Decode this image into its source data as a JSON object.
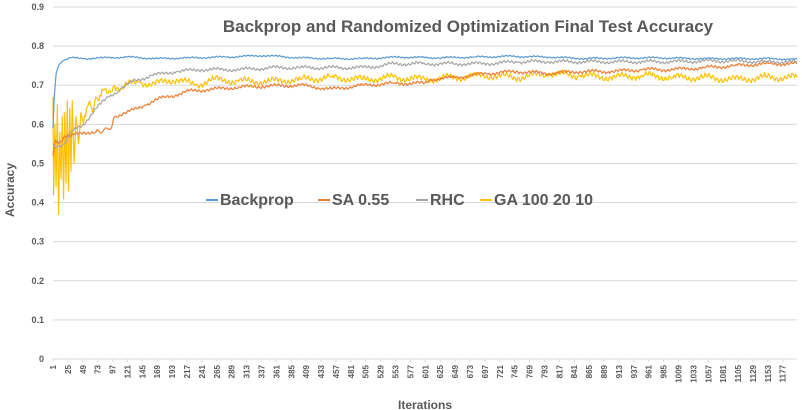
{
  "chart_data": {
    "type": "line",
    "title": "Backprop and Randomized Optimization Final Test Accuracy",
    "xlabel": "Iterations",
    "ylabel": "Accuracy",
    "ylim": [
      0,
      0.9
    ],
    "yticks": [
      "0",
      "0.1",
      "0.2",
      "0.3",
      "0.4",
      "0.5",
      "0.6",
      "0.7",
      "0.8",
      "0.9"
    ],
    "xlim": [
      1,
      1200
    ],
    "xticks": [
      1,
      25,
      49,
      73,
      97,
      121,
      145,
      169,
      193,
      217,
      241,
      265,
      289,
      313,
      337,
      361,
      385,
      409,
      433,
      457,
      481,
      505,
      529,
      553,
      577,
      601,
      625,
      649,
      673,
      697,
      721,
      745,
      769,
      793,
      817,
      841,
      865,
      889,
      913,
      937,
      961,
      985,
      1009,
      1033,
      1057,
      1081,
      1105,
      1129,
      1153,
      1177
    ],
    "grid": true,
    "legend_position": "center",
    "series": [
      {
        "name": "Backprop",
        "color": "#5b9bd5",
        "x": [
          1,
          3,
          6,
          10,
          15,
          20,
          30,
          50,
          80,
          120,
          170,
          220,
          280,
          340,
          400,
          450,
          500,
          560,
          620,
          680,
          740,
          800,
          860,
          920,
          980,
          1040,
          1100,
          1160,
          1200
        ],
        "y": [
          0.59,
          0.67,
          0.73,
          0.75,
          0.76,
          0.765,
          0.77,
          0.768,
          0.77,
          0.772,
          0.768,
          0.77,
          0.772,
          0.776,
          0.77,
          0.768,
          0.768,
          0.772,
          0.77,
          0.772,
          0.774,
          0.772,
          0.768,
          0.77,
          0.77,
          0.768,
          0.768,
          0.768,
          0.766
        ]
      },
      {
        "name": "SA 0.55",
        "color": "#ed7d31",
        "x": [
          1,
          5,
          10,
          20,
          30,
          50,
          70,
          95,
          100,
          120,
          150,
          180,
          200,
          220,
          260,
          300,
          350,
          400,
          450,
          500,
          550,
          600,
          610,
          650,
          700,
          750,
          800,
          850,
          900,
          950,
          1000,
          1050,
          1100,
          1150,
          1200
        ],
        "y": [
          0.52,
          0.56,
          0.55,
          0.57,
          0.57,
          0.58,
          0.58,
          0.59,
          0.62,
          0.63,
          0.65,
          0.67,
          0.675,
          0.685,
          0.69,
          0.695,
          0.698,
          0.7,
          0.69,
          0.7,
          0.705,
          0.705,
          0.715,
          0.72,
          0.73,
          0.735,
          0.73,
          0.735,
          0.735,
          0.74,
          0.74,
          0.745,
          0.75,
          0.755,
          0.755
        ]
      },
      {
        "name": "RHC",
        "color": "#a5a5a5",
        "x": [
          1,
          5,
          10,
          20,
          30,
          40,
          50,
          70,
          90,
          110,
          130,
          160,
          200,
          240,
          300,
          360,
          400,
          450,
          500,
          530,
          550,
          600,
          650,
          700,
          750,
          800,
          850,
          900,
          950,
          1000,
          1050,
          1100,
          1150,
          1200
        ],
        "y": [
          0.55,
          0.54,
          0.545,
          0.55,
          0.58,
          0.59,
          0.6,
          0.64,
          0.67,
          0.69,
          0.71,
          0.725,
          0.735,
          0.74,
          0.74,
          0.745,
          0.745,
          0.745,
          0.745,
          0.75,
          0.755,
          0.755,
          0.755,
          0.755,
          0.76,
          0.76,
          0.76,
          0.76,
          0.76,
          0.76,
          0.762,
          0.762,
          0.76,
          0.76
        ]
      },
      {
        "name": "GA 100 20 10",
        "color": "#ffc000",
        "x": [
          1,
          2,
          4,
          6,
          8,
          10,
          12,
          14,
          16,
          18,
          20,
          22,
          24,
          26,
          28,
          30,
          32,
          35,
          38,
          42,
          46,
          50,
          55,
          60,
          65,
          70,
          75,
          80,
          90,
          100,
          110,
          120,
          140,
          160,
          180,
          200,
          230,
          260,
          300,
          350,
          400,
          450,
          500,
          550,
          600,
          650,
          700,
          750,
          800,
          850,
          900,
          950,
          1000,
          1050,
          1100,
          1150,
          1200
        ],
        "y": [
          0.67,
          0.42,
          0.6,
          0.44,
          0.65,
          0.37,
          0.58,
          0.46,
          0.62,
          0.41,
          0.63,
          0.45,
          0.66,
          0.43,
          0.64,
          0.48,
          0.66,
          0.5,
          0.62,
          0.55,
          0.63,
          0.6,
          0.64,
          0.66,
          0.63,
          0.67,
          0.66,
          0.69,
          0.68,
          0.7,
          0.69,
          0.7,
          0.71,
          0.7,
          0.71,
          0.715,
          0.7,
          0.715,
          0.71,
          0.71,
          0.715,
          0.72,
          0.715,
          0.72,
          0.715,
          0.72,
          0.725,
          0.72,
          0.73,
          0.725,
          0.72,
          0.725,
          0.72,
          0.72,
          0.715,
          0.72,
          0.72
        ]
      }
    ]
  }
}
